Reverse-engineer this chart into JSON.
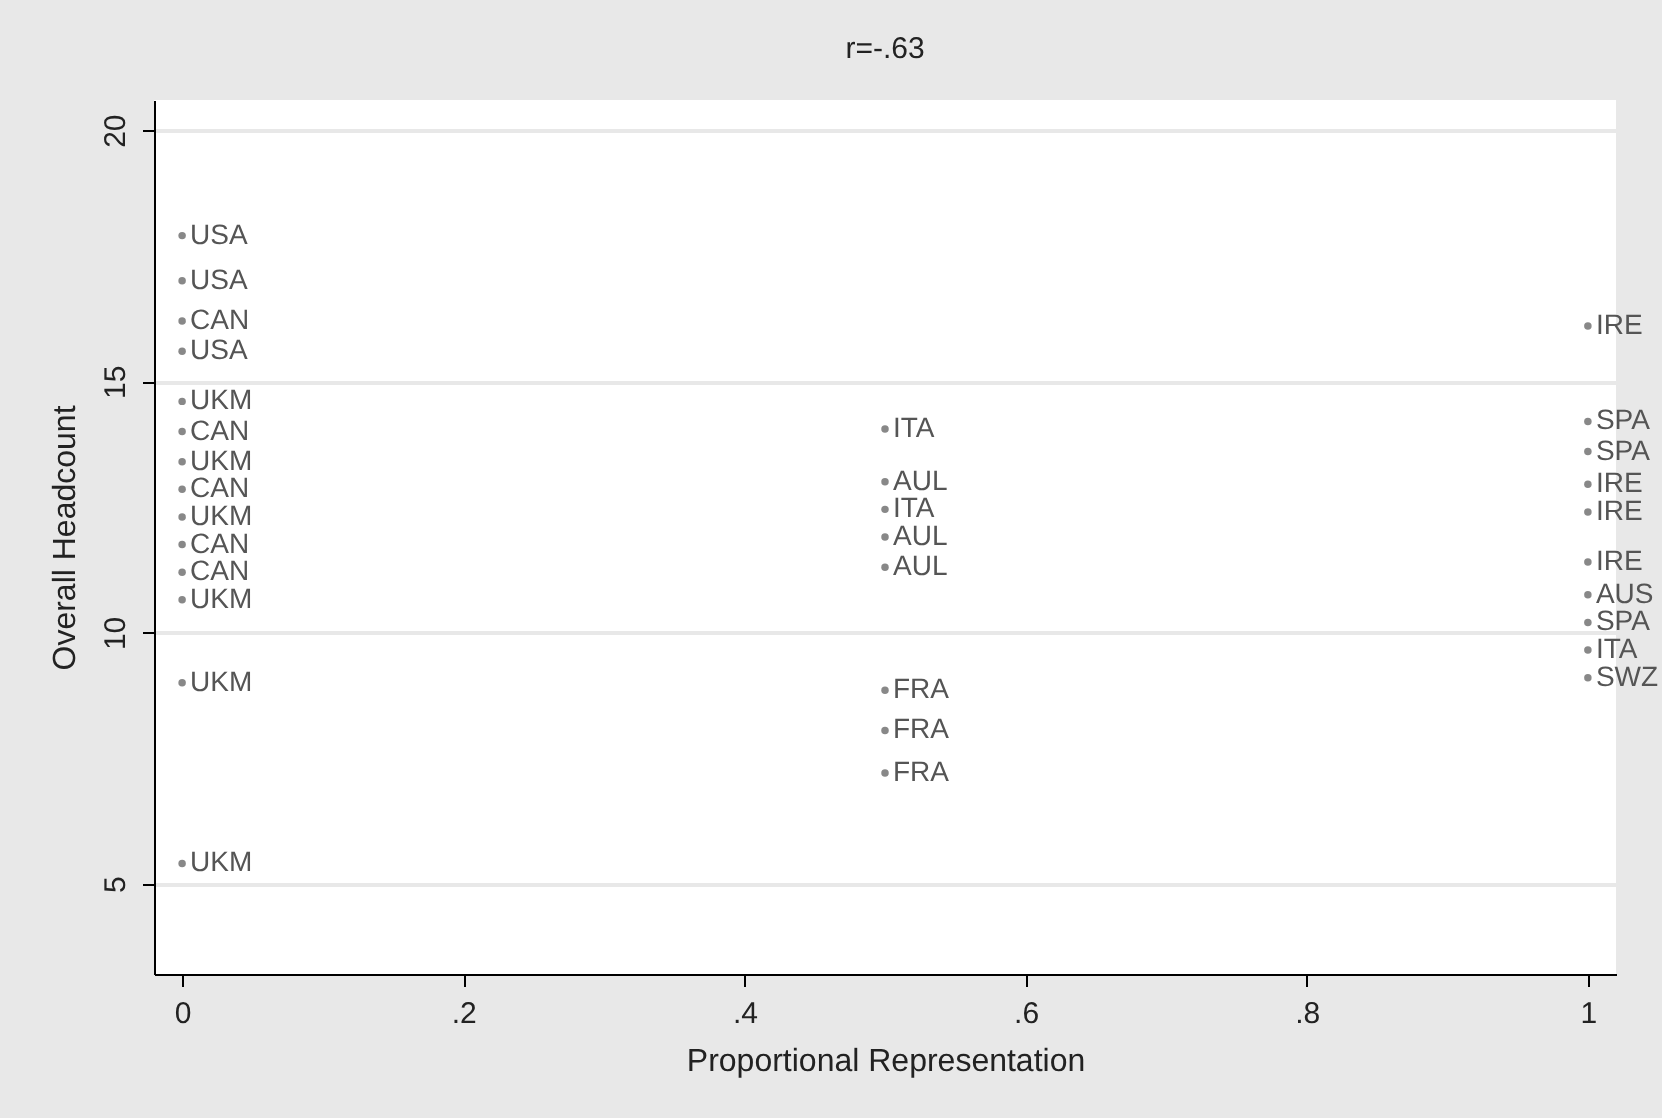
{
  "chart_data": {
    "type": "scatter",
    "title": "r=-.63",
    "xlabel": "Proportional Representation",
    "ylabel": "Overall Headcount",
    "xlim": [
      -0.02,
      1.02
    ],
    "ylim": [
      3.2,
      20.6
    ],
    "xticks": [
      0,
      {
        "value": 0.2,
        "label": ".2"
      },
      {
        "value": 0.4,
        "label": ".4"
      },
      {
        "value": 0.6,
        "label": ".6"
      },
      {
        "value": 0.8,
        "label": ".8"
      },
      1
    ],
    "yticks": [
      5,
      10,
      15,
      20
    ],
    "grid": "y",
    "marker": "circle",
    "series": [
      {
        "color": "#555555",
        "x": [
          0,
          0,
          0,
          0,
          0,
          0,
          0,
          0,
          0,
          0,
          0,
          0,
          0,
          0,
          0.5,
          0.5,
          0.5,
          0.5,
          0.5,
          0.5,
          0.5,
          0.5,
          1,
          1,
          1,
          1,
          1,
          1,
          1,
          1,
          1,
          1
        ],
        "values": [
          17.9,
          17.0,
          16.2,
          15.6,
          14.6,
          14.0,
          13.4,
          12.85,
          12.3,
          11.75,
          11.2,
          10.65,
          9.0,
          5.4,
          14.05,
          13.0,
          12.45,
          11.9,
          11.3,
          8.85,
          8.05,
          7.2,
          16.1,
          14.2,
          13.6,
          12.95,
          12.4,
          11.4,
          10.75,
          10.2,
          9.65,
          9.1
        ],
        "value_labels": [
          "USA",
          "USA",
          "CAN",
          "USA",
          "UKM",
          "CAN",
          "UKM",
          "CAN",
          "UKM",
          "CAN",
          "CAN",
          "UKM",
          "UKM",
          "UKM",
          "ITA",
          "AUL",
          "ITA",
          "AUL",
          "AUL",
          "FRA",
          "FRA",
          "FRA",
          "IRE",
          "SPA",
          "SPA",
          "IRE",
          "IRE",
          "IRE",
          "AUS",
          "SPA",
          "ITA",
          "SWZ"
        ]
      }
    ]
  }
}
